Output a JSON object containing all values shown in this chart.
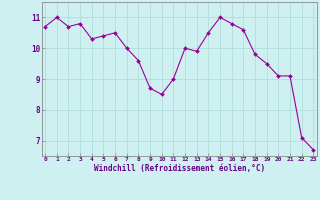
{
  "x": [
    0,
    1,
    2,
    3,
    4,
    5,
    6,
    7,
    8,
    9,
    10,
    11,
    12,
    13,
    14,
    15,
    16,
    17,
    18,
    19,
    20,
    21,
    22,
    23
  ],
  "y": [
    10.7,
    11.0,
    10.7,
    10.8,
    10.3,
    10.4,
    10.5,
    10.0,
    9.6,
    8.7,
    8.5,
    9.0,
    10.0,
    9.9,
    10.5,
    11.0,
    10.8,
    10.6,
    9.8,
    9.5,
    9.1,
    9.1,
    7.1,
    6.7
  ],
  "line_color": "#990099",
  "marker": "D",
  "marker_size": 2.0,
  "bg_color": "#cff0f0",
  "grid_color": "#b0dede",
  "xlabel": "Windchill (Refroidissement éolien,°C)",
  "xlabel_color": "#660088",
  "tick_color": "#660088",
  "axis_color": "#888888",
  "ylim": [
    6.5,
    11.5
  ],
  "yticks": [
    7,
    8,
    9,
    10,
    11
  ],
  "xticks": [
    0,
    1,
    2,
    3,
    4,
    5,
    6,
    7,
    8,
    9,
    10,
    11,
    12,
    13,
    14,
    15,
    16,
    17,
    18,
    19,
    20,
    21,
    22,
    23
  ]
}
